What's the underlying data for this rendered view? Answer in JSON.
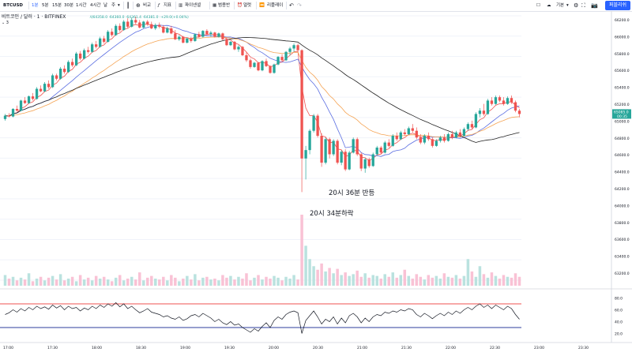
{
  "toolbar": {
    "symbol": "BTCUSD",
    "intervals": [
      "1분",
      "5분",
      "15분",
      "30분",
      "1시간",
      "4시간",
      "날",
      "주"
    ],
    "compare": "비교",
    "indicators": "지표",
    "financials": "파이넨셜",
    "alert": "얼럿",
    "replay": "리플레이",
    "layout": "기본",
    "publish": "퍼블리쉬"
  },
  "legend": {
    "title": "비트코인 / 달러 · 1 · BITFINEX",
    "ma_values": "사64358.0 ·64360.0 ·64361.4 ·64381.0 ·+29.0(+0.04%)",
    "line2": "3"
  },
  "annotations": {
    "rebound": "20시 36분 반등",
    "drop": "20시 34분하락"
  },
  "price_badge": {
    "value": "65085.0",
    "sub": "00:35"
  },
  "colors": {
    "up": "#26a69a",
    "down": "#ef5350",
    "ma_red": "#ef5350",
    "ma_blue": "#5b6ee1",
    "ma_orange": "#f5a454",
    "ma_black": "#222222",
    "rsi_upper": "#ef5350",
    "rsi_lower": "#2c3e9e"
  },
  "chart_data": {
    "type": "candlestick",
    "price_axis": [
      "66200.0",
      "66000.0",
      "65800.0",
      "65600.0",
      "65400.0",
      "65200.0",
      "65000.0",
      "64800.0",
      "64600.0",
      "64400.0",
      "64200.0",
      "64000.0",
      "63800.0",
      "63600.0",
      "63400.0",
      "63200.0"
    ],
    "time_axis": [
      "17:00",
      "17:30",
      "18:00",
      "18:30",
      "19:00",
      "19:30",
      "20:00",
      "20:30",
      "21:00",
      "21:30",
      "22:00",
      "22:30",
      "23:00",
      "23:30"
    ],
    "rsi_axis": [
      "80.0",
      "60.0",
      "40.0",
      "20.0"
    ],
    "ylim": [
      63100,
      66250
    ],
    "rsi_levels": [
      70,
      30
    ],
    "candles": [
      [
        65020,
        65080,
        65000,
        65060
      ],
      [
        65060,
        65090,
        65040,
        65050
      ],
      [
        65050,
        65150,
        65040,
        65140
      ],
      [
        65140,
        65180,
        65110,
        65120
      ],
      [
        65120,
        65250,
        65110,
        65240
      ],
      [
        65240,
        65280,
        65200,
        65210
      ],
      [
        65210,
        65300,
        65200,
        65290
      ],
      [
        65290,
        65330,
        65240,
        65260
      ],
      [
        65260,
        65400,
        65250,
        65380
      ],
      [
        65380,
        65420,
        65340,
        65350
      ],
      [
        65350,
        65460,
        65340,
        65440
      ],
      [
        65440,
        65480,
        65380,
        65400
      ],
      [
        65400,
        65560,
        65390,
        65540
      ],
      [
        65540,
        65560,
        65480,
        65500
      ],
      [
        65500,
        65640,
        65490,
        65620
      ],
      [
        65620,
        65660,
        65560,
        65580
      ],
      [
        65580,
        65720,
        65570,
        65700
      ],
      [
        65700,
        65740,
        65640,
        65660
      ],
      [
        65660,
        65820,
        65650,
        65800
      ],
      [
        65800,
        65830,
        65720,
        65740
      ],
      [
        65740,
        65860,
        65730,
        65840
      ],
      [
        65840,
        65880,
        65800,
        65820
      ],
      [
        65820,
        65930,
        65810,
        65910
      ],
      [
        65910,
        65950,
        65860,
        65880
      ],
      [
        65880,
        66000,
        65870,
        65980
      ],
      [
        65980,
        66010,
        65920,
        65940
      ],
      [
        65940,
        66080,
        65930,
        66060
      ],
      [
        66060,
        66100,
        66000,
        66020
      ],
      [
        66020,
        66150,
        66010,
        66130
      ],
      [
        66130,
        66160,
        66060,
        66080
      ],
      [
        66080,
        66200,
        66070,
        66180
      ],
      [
        66180,
        66220,
        66100,
        66120
      ],
      [
        66120,
        66230,
        66110,
        66200
      ],
      [
        66200,
        66240,
        66150,
        66170
      ],
      [
        66170,
        66200,
        66100,
        66110
      ],
      [
        66110,
        66190,
        66100,
        66180
      ],
      [
        66180,
        66200,
        66130,
        66150
      ],
      [
        66150,
        66180,
        66090,
        66100
      ],
      [
        66100,
        66160,
        66080,
        66140
      ],
      [
        66140,
        66170,
        66100,
        66120
      ],
      [
        66120,
        66140,
        66040,
        66050
      ],
      [
        66050,
        66120,
        66040,
        66100
      ],
      [
        66100,
        66130,
        66030,
        66040
      ],
      [
        66040,
        66080,
        65960,
        65970
      ],
      [
        65970,
        66020,
        65950,
        66000
      ],
      [
        66000,
        66010,
        65920,
        65930
      ],
      [
        65930,
        65990,
        65920,
        65980
      ],
      [
        65980,
        66000,
        65930,
        65950
      ],
      [
        65950,
        66040,
        65940,
        66030
      ],
      [
        66030,
        66060,
        65990,
        66000
      ],
      [
        66000,
        66080,
        65990,
        66070
      ],
      [
        66070,
        66090,
        66020,
        66030
      ],
      [
        66030,
        66070,
        66000,
        66050
      ],
      [
        66050,
        66060,
        65990,
        66000
      ],
      [
        66000,
        66050,
        65990,
        66040
      ],
      [
        66040,
        66050,
        65960,
        65970
      ],
      [
        65970,
        65990,
        65890,
        65900
      ],
      [
        65900,
        65950,
        65890,
        65940
      ],
      [
        65940,
        65950,
        65840,
        65850
      ],
      [
        65850,
        65900,
        65820,
        65880
      ],
      [
        65880,
        65890,
        65770,
        65780
      ],
      [
        65780,
        65820,
        65700,
        65720
      ],
      [
        65720,
        65740,
        65620,
        65640
      ],
      [
        65640,
        65700,
        65630,
        65690
      ],
      [
        65690,
        65700,
        65590,
        65600
      ],
      [
        65600,
        65720,
        65590,
        65710
      ],
      [
        65710,
        65740,
        65640,
        65650
      ],
      [
        65650,
        65660,
        65560,
        65570
      ],
      [
        65570,
        65680,
        65560,
        65670
      ],
      [
        65670,
        65770,
        65660,
        65760
      ],
      [
        65760,
        65790,
        65700,
        65720
      ],
      [
        65720,
        65830,
        65710,
        65820
      ],
      [
        65820,
        65880,
        65780,
        65860
      ],
      [
        65860,
        65920,
        65820,
        65900
      ],
      [
        65900,
        65920,
        65820,
        65840
      ],
      [
        65840,
        65850,
        64150,
        64550
      ],
      [
        64550,
        64700,
        64300,
        64650
      ],
      [
        64650,
        64900,
        64600,
        64880
      ],
      [
        64880,
        65080,
        64860,
        65060
      ],
      [
        65060,
        65080,
        64800,
        64820
      ],
      [
        64820,
        64850,
        64450,
        64500
      ],
      [
        64500,
        64800,
        64480,
        64780
      ],
      [
        64780,
        64800,
        64550,
        64600
      ],
      [
        64600,
        64780,
        64580,
        64760
      ],
      [
        64760,
        64780,
        64480,
        64500
      ],
      [
        64500,
        64650,
        64470,
        64630
      ],
      [
        64630,
        64660,
        64400,
        64420
      ],
      [
        64420,
        64640,
        64410,
        64620
      ],
      [
        64620,
        64800,
        64610,
        64780
      ],
      [
        64780,
        64800,
        64580,
        64600
      ],
      [
        64600,
        64620,
        64400,
        64430
      ],
      [
        64430,
        64560,
        64380,
        64540
      ],
      [
        64540,
        64560,
        64440,
        64460
      ],
      [
        64460,
        64620,
        64450,
        64600
      ],
      [
        64600,
        64700,
        64580,
        64680
      ],
      [
        64680,
        64700,
        64600,
        64620
      ],
      [
        64620,
        64760,
        64610,
        64740
      ],
      [
        64740,
        64780,
        64680,
        64700
      ],
      [
        64700,
        64840,
        64690,
        64820
      ],
      [
        64820,
        64860,
        64760,
        64780
      ],
      [
        64780,
        64880,
        64770,
        64860
      ],
      [
        64860,
        64900,
        64820,
        64840
      ],
      [
        64840,
        64930,
        64830,
        64910
      ],
      [
        64910,
        64960,
        64860,
        64880
      ],
      [
        64880,
        64920,
        64780,
        64800
      ],
      [
        64800,
        64840,
        64720,
        64740
      ],
      [
        64740,
        64840,
        64720,
        64820
      ],
      [
        64820,
        64860,
        64760,
        64780
      ],
      [
        64780,
        64800,
        64680,
        64700
      ],
      [
        64700,
        64780,
        64690,
        64760
      ],
      [
        64760,
        64820,
        64740,
        64800
      ],
      [
        64800,
        64840,
        64740,
        64760
      ],
      [
        64760,
        64860,
        64750,
        64840
      ],
      [
        64840,
        64880,
        64780,
        64800
      ],
      [
        64800,
        64880,
        64790,
        64860
      ],
      [
        64860,
        64900,
        64800,
        64820
      ],
      [
        64820,
        64920,
        64810,
        64900
      ],
      [
        64900,
        64980,
        64880,
        64960
      ],
      [
        64960,
        65000,
        64900,
        64920
      ],
      [
        64920,
        65100,
        64910,
        65080
      ],
      [
        65080,
        65150,
        65040,
        65120
      ],
      [
        65120,
        65200,
        65060,
        65080
      ],
      [
        65080,
        65260,
        65070,
        65240
      ],
      [
        65240,
        65280,
        65180,
        65200
      ],
      [
        65200,
        65300,
        65190,
        65280
      ],
      [
        65280,
        65300,
        65220,
        65240
      ],
      [
        65240,
        65280,
        65180,
        65200
      ],
      [
        65200,
        65290,
        65190,
        65270
      ],
      [
        65270,
        65300,
        65200,
        65220
      ],
      [
        65220,
        65240,
        65100,
        65120
      ],
      [
        65120,
        65140,
        65040,
        65080
      ]
    ],
    "volumes": [
      12,
      8,
      10,
      6,
      9,
      7,
      14,
      5,
      8,
      10,
      6,
      9,
      11,
      7,
      13,
      6,
      8,
      10,
      5,
      12,
      7,
      9,
      6,
      11,
      8,
      10,
      7,
      5,
      9,
      12,
      6,
      8,
      10,
      7,
      15,
      6,
      9,
      11,
      8,
      7,
      10,
      6,
      12,
      9,
      5,
      8,
      11,
      7,
      13,
      6,
      9,
      10,
      7,
      8,
      6,
      12,
      9,
      11,
      7,
      10,
      8,
      14,
      6,
      9,
      12,
      7,
      10,
      8,
      11,
      9,
      6,
      10,
      8,
      12,
      7,
      80,
      45,
      30,
      22,
      18,
      25,
      16,
      20,
      14,
      19,
      12,
      15,
      11,
      13,
      17,
      10,
      14,
      9,
      12,
      11,
      8,
      13,
      10,
      15,
      9,
      12,
      18,
      11,
      8,
      13,
      10,
      7,
      12,
      9,
      11,
      8,
      14,
      10,
      9,
      12,
      8,
      11,
      30,
      16,
      10,
      22,
      13,
      9,
      15,
      11,
      8,
      12,
      10,
      9,
      14,
      10
    ],
    "rsi": [
      52,
      55,
      60,
      56,
      62,
      58,
      64,
      60,
      66,
      62,
      65,
      61,
      68,
      63,
      67,
      60,
      66,
      62,
      64,
      58,
      63,
      60,
      66,
      62,
      68,
      64,
      70,
      66,
      72,
      65,
      70,
      62,
      66,
      60,
      55,
      58,
      62,
      56,
      54,
      52,
      48,
      50,
      46,
      44,
      48,
      42,
      45,
      50,
      52,
      48,
      54,
      50,
      46,
      40,
      44,
      38,
      35,
      40,
      34,
      36,
      30,
      26,
      22,
      28,
      24,
      32,
      38,
      30,
      42,
      48,
      44,
      52,
      56,
      58,
      55,
      20,
      42,
      50,
      58,
      48,
      36,
      44,
      40,
      48,
      36,
      46,
      38,
      50,
      54,
      48,
      38,
      46,
      40,
      48,
      52,
      50,
      56,
      54,
      58,
      56,
      60,
      58,
      62,
      60,
      52,
      48,
      54,
      50,
      45,
      50,
      54,
      50,
      56,
      52,
      58,
      54,
      60,
      64,
      60,
      66,
      70,
      64,
      68,
      62,
      68,
      64,
      60,
      66,
      62,
      52,
      44
    ]
  }
}
